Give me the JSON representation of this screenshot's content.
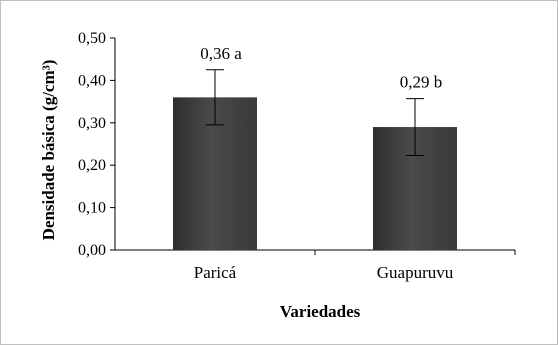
{
  "chart_data": {
    "type": "bar",
    "categories": [
      "Paricá",
      "Guapuruvu"
    ],
    "values": [
      0.36,
      0.29
    ],
    "error_bars": [
      0.065,
      0.067
    ],
    "data_labels": [
      "0,36 a",
      "0,29 b"
    ],
    "title": "",
    "xlabel": "Variedades",
    "ylabel": "Densidade básica (g/cm³)",
    "ylim": [
      0,
      0.5
    ],
    "yticks": [
      0,
      0.1,
      0.2,
      0.3,
      0.4,
      0.5
    ],
    "ytick_labels": [
      "0,00",
      "0,10",
      "0,20",
      "0,30",
      "0,40",
      "0,50"
    ],
    "grid": false,
    "legend": "none",
    "bar_color": "#3f3f3f"
  }
}
